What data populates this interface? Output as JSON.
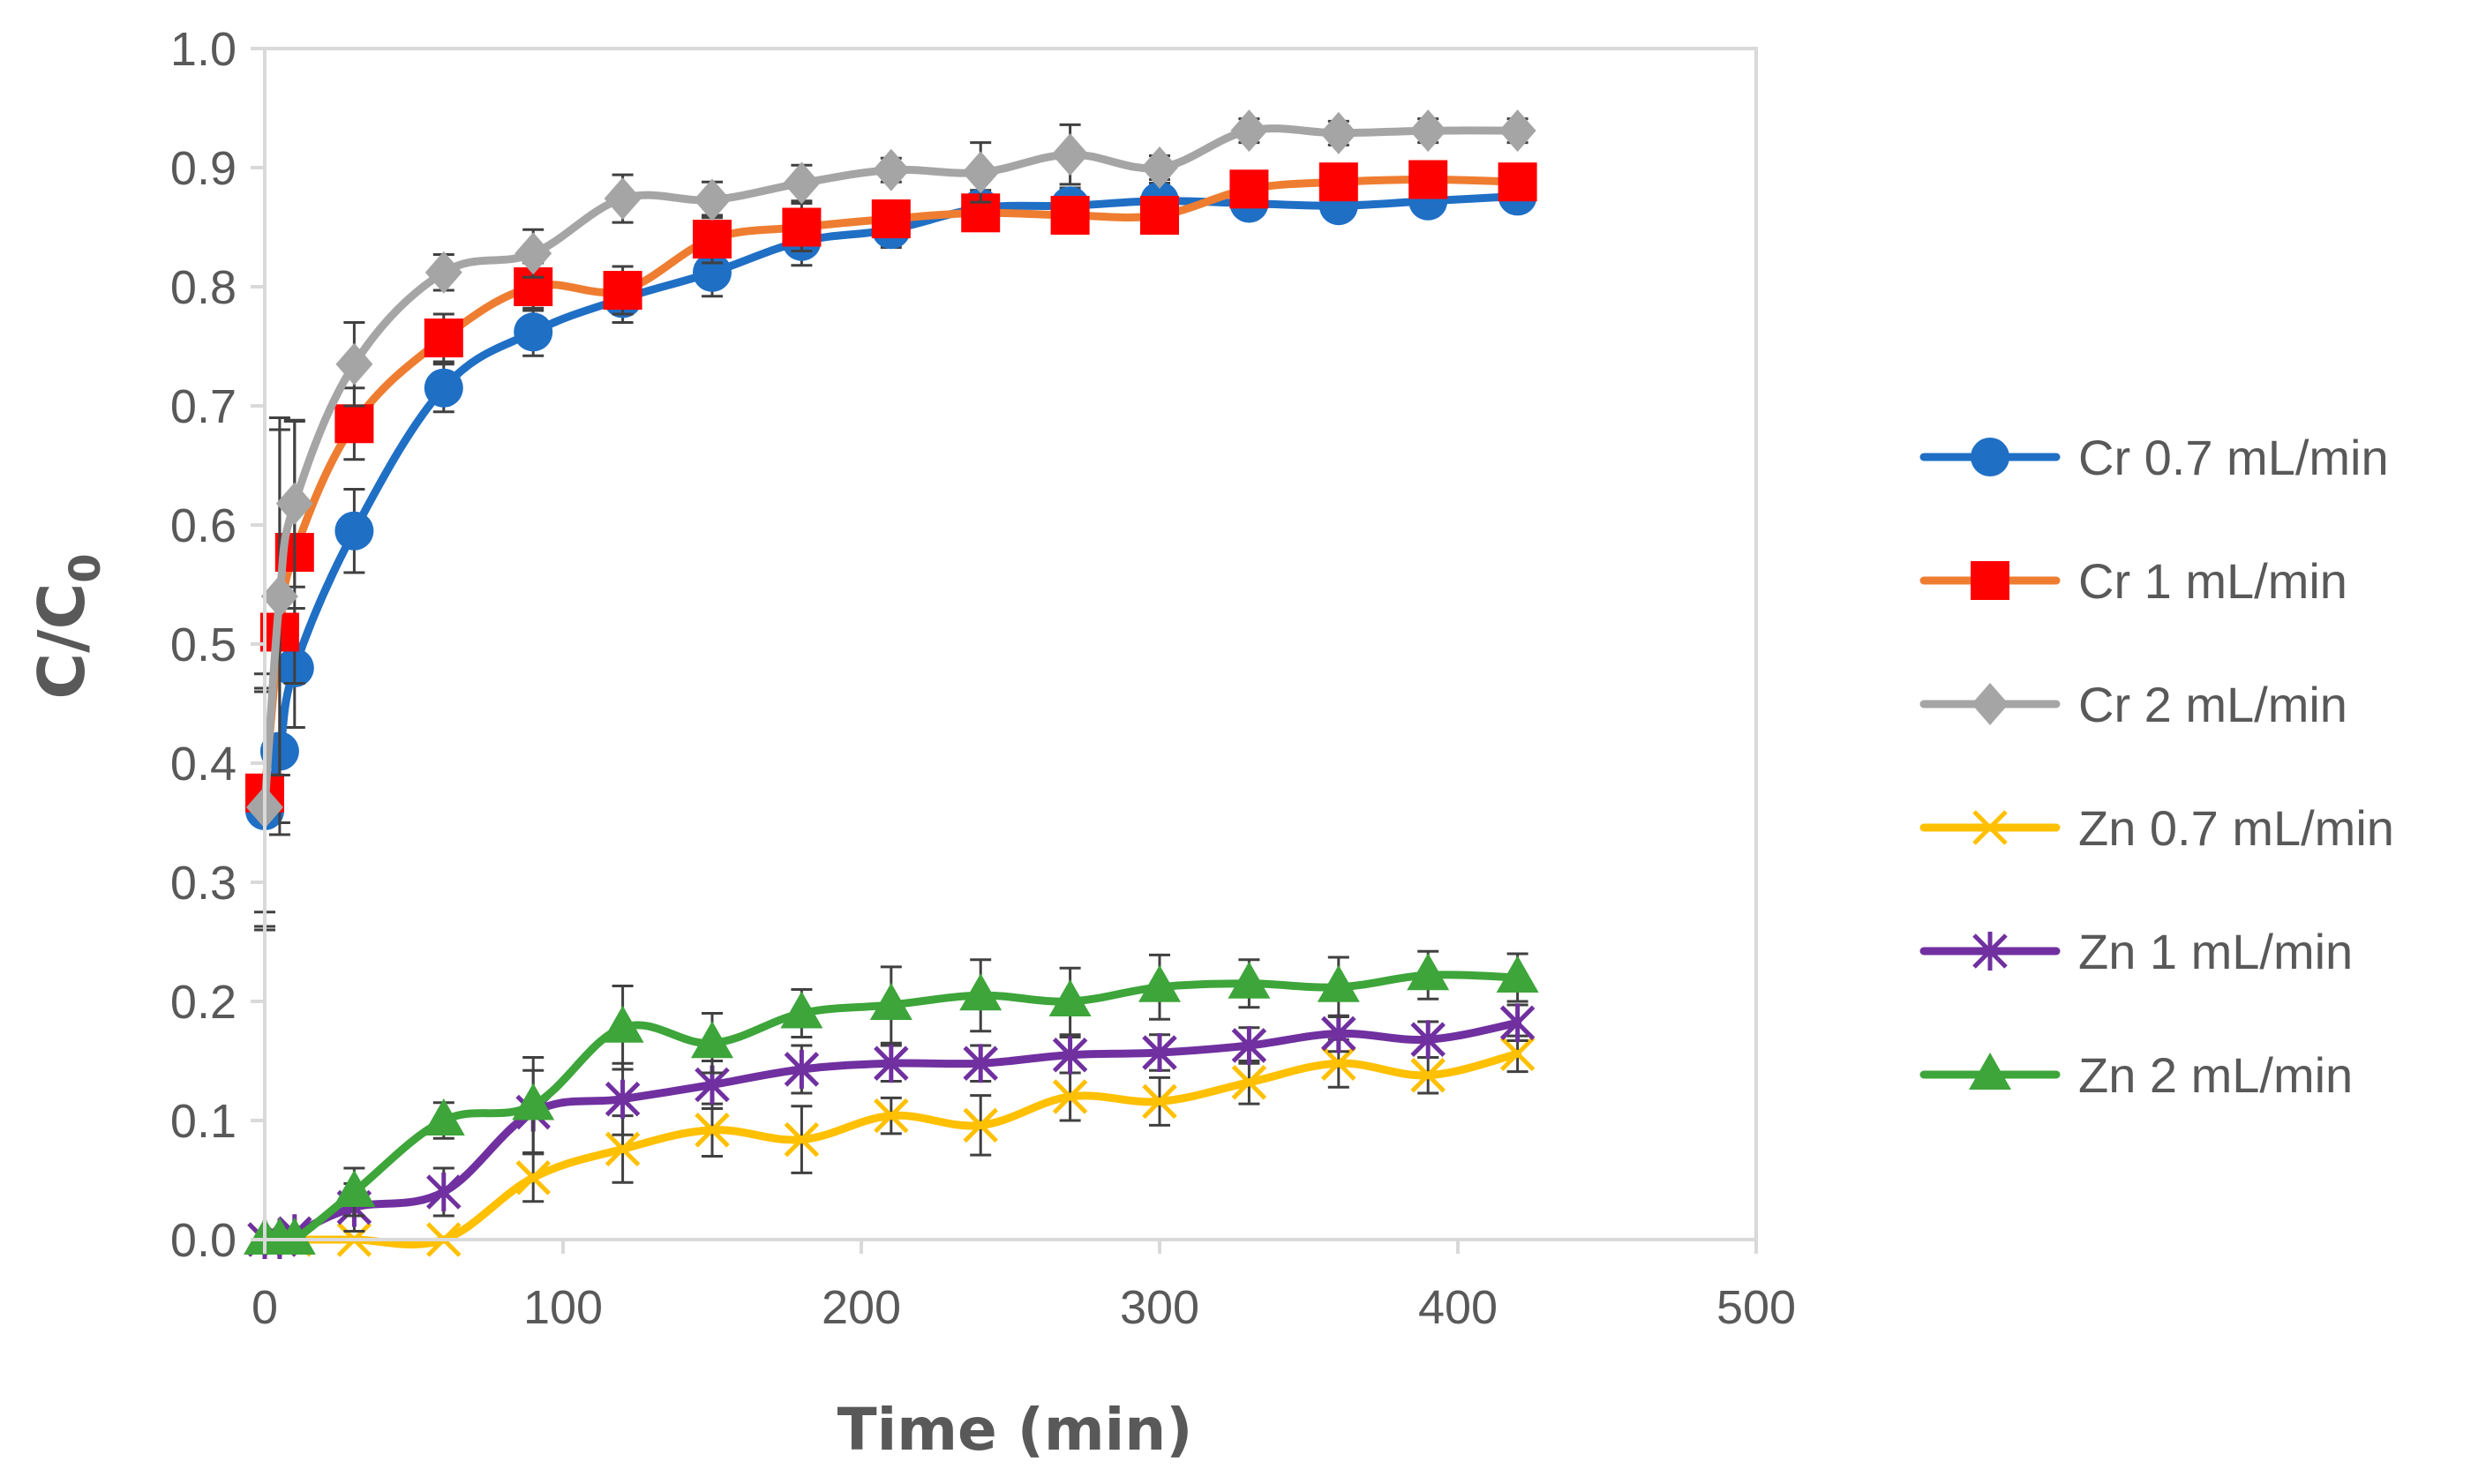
{
  "chart_data": {
    "type": "line",
    "title": "",
    "xlabel": "Time (min)",
    "ylabel_main": "C/C",
    "ylabel_sub": "0",
    "xlim": [
      0,
      500
    ],
    "ylim": [
      0,
      1.0
    ],
    "xticks": [
      "0",
      "100",
      "200",
      "300",
      "400",
      "500"
    ],
    "yticks": [
      "0.0",
      "0.1",
      "0.2",
      "0.3",
      "0.4",
      "0.5",
      "0.6",
      "0.7",
      "0.8",
      "0.9",
      "1.0"
    ],
    "grid": false,
    "legend_position": "right",
    "series": [
      {
        "name": "Cr 0.7 mL/min",
        "color": "#1f6fc5",
        "marker": "circle",
        "x": [
          0,
          5,
          10,
          30,
          60,
          90,
          120,
          150,
          180,
          210,
          240,
          270,
          300,
          330,
          360,
          390,
          420
        ],
        "y": [
          0.36,
          0.41,
          0.48,
          0.595,
          0.715,
          0.762,
          0.79,
          0.812,
          0.838,
          0.848,
          0.866,
          0.868,
          0.872,
          0.87,
          0.868,
          0.872,
          0.876
        ],
        "err": [
          0.1,
          0.06,
          0.05,
          0.035,
          0.02,
          0.02,
          0.02,
          0.02,
          0.02,
          0.015,
          0.015,
          0.015,
          0.015,
          0.01,
          0.01,
          0.01,
          0.01
        ]
      },
      {
        "name": "Cr 1 mL/min",
        "color": "#ee7d31",
        "marker_color": "#ff0000",
        "marker": "square",
        "x": [
          0,
          5,
          10,
          30,
          60,
          90,
          120,
          150,
          180,
          210,
          240,
          270,
          300,
          330,
          360,
          390,
          420
        ],
        "y": [
          0.375,
          0.51,
          0.577,
          0.685,
          0.757,
          0.8,
          0.797,
          0.84,
          0.85,
          0.857,
          0.862,
          0.86,
          0.86,
          0.882,
          0.888,
          0.89,
          0.888
        ],
        "err": [
          0.1,
          0.17,
          0.11,
          0.03,
          0.02,
          0.02,
          0.02,
          0.02,
          0.02,
          0.015,
          0.015,
          0.015,
          0.015,
          0.01,
          0.01,
          0.01,
          0.01
        ]
      },
      {
        "name": "Cr 2 mL/min",
        "color": "#a5a5a5",
        "marker": "diamond",
        "x": [
          0,
          5,
          10,
          30,
          60,
          90,
          120,
          150,
          180,
          210,
          240,
          270,
          300,
          330,
          360,
          390,
          420
        ],
        "y": [
          0.363,
          0.54,
          0.618,
          0.735,
          0.812,
          0.828,
          0.874,
          0.873,
          0.887,
          0.898,
          0.896,
          0.911,
          0.9,
          0.931,
          0.929,
          0.931,
          0.931
        ],
        "err": [
          0.1,
          0.15,
          0.07,
          0.035,
          0.015,
          0.02,
          0.02,
          0.015,
          0.015,
          0.01,
          0.025,
          0.025,
          0.01,
          0.01,
          0.01,
          0.01,
          0.01
        ]
      },
      {
        "name": "Zn 0.7 mL/min",
        "color": "#ffc000",
        "marker": "x",
        "x": [
          0,
          5,
          10,
          30,
          60,
          90,
          120,
          150,
          180,
          210,
          240,
          270,
          300,
          330,
          360,
          390,
          420
        ],
        "y": [
          0.0,
          0.0,
          0.0,
          0.0,
          0.0,
          0.052,
          0.076,
          0.092,
          0.084,
          0.104,
          0.096,
          0.12,
          0.116,
          0.132,
          0.148,
          0.138,
          0.156
        ],
        "err": [
          0.0,
          0.0,
          0.0,
          0.0,
          0.0,
          0.02,
          0.028,
          0.022,
          0.028,
          0.015,
          0.025,
          0.02,
          0.02,
          0.018,
          0.02,
          0.015,
          0.015
        ]
      },
      {
        "name": "Zn 1 mL/min",
        "color": "#7030a0",
        "marker": "star",
        "x": [
          0,
          5,
          10,
          30,
          60,
          90,
          120,
          150,
          180,
          210,
          240,
          270,
          300,
          330,
          360,
          390,
          420
        ],
        "y": [
          0.0,
          0.0,
          0.005,
          0.027,
          0.04,
          0.107,
          0.118,
          0.13,
          0.143,
          0.148,
          0.148,
          0.155,
          0.157,
          0.163,
          0.173,
          0.168,
          0.182
        ],
        "err": [
          0.0,
          0.0,
          0.005,
          0.02,
          0.02,
          0.035,
          0.03,
          0.02,
          0.02,
          0.015,
          0.015,
          0.015,
          0.015,
          0.015,
          0.015,
          0.015,
          0.015
        ]
      },
      {
        "name": "Zn 2 mL/min",
        "color": "#3da53a",
        "marker": "triangle",
        "x": [
          0,
          5,
          10,
          30,
          60,
          90,
          120,
          150,
          180,
          210,
          240,
          270,
          300,
          330,
          360,
          390,
          420
        ],
        "y": [
          0.0,
          0.0,
          0.0,
          0.04,
          0.1,
          0.113,
          0.178,
          0.165,
          0.19,
          0.197,
          0.205,
          0.2,
          0.212,
          0.215,
          0.212,
          0.222,
          0.22
        ],
        "err": [
          0.0,
          0.0,
          0.0,
          0.02,
          0.015,
          0.04,
          0.035,
          0.025,
          0.02,
          0.032,
          0.03,
          0.028,
          0.027,
          0.02,
          0.025,
          0.02,
          0.02
        ]
      }
    ]
  }
}
